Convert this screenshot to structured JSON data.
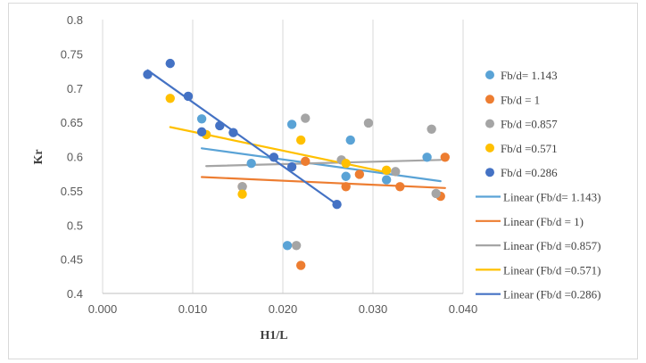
{
  "chart_data": {
    "type": "scatter",
    "xlabel": "H1/L",
    "ylabel": "Kr",
    "xlim": [
      0.0,
      0.04
    ],
    "ylim": [
      0.4,
      0.8
    ],
    "xticks": [
      0.0,
      0.01,
      0.02,
      0.03,
      0.04
    ],
    "xtick_labels": [
      "0.000",
      "0.010",
      "0.020",
      "0.030",
      "0.040"
    ],
    "yticks": [
      0.4,
      0.45,
      0.5,
      0.55,
      0.6,
      0.65,
      0.7,
      0.75,
      0.8
    ],
    "ytick_labels": [
      "0.4",
      "0.45",
      "0.5",
      "0.55",
      "0.6",
      "0.65",
      "0.7",
      "0.75",
      "0.8"
    ],
    "grid": "vertical",
    "legend_position": "right",
    "series": [
      {
        "name": "Fb/d= 1.143",
        "color": "#5aa3d6",
        "points": [
          [
            0.011,
            0.655
          ],
          [
            0.0165,
            0.59
          ],
          [
            0.0205,
            0.47
          ],
          [
            0.021,
            0.647
          ],
          [
            0.027,
            0.571
          ],
          [
            0.0275,
            0.624
          ],
          [
            0.0315,
            0.566
          ],
          [
            0.036,
            0.599
          ]
        ]
      },
      {
        "name": "Fb/d = 1",
        "color": "#ed7d31",
        "points": [
          [
            0.0155,
            0.556
          ],
          [
            0.022,
            0.441
          ],
          [
            0.0225,
            0.593
          ],
          [
            0.027,
            0.556
          ],
          [
            0.0285,
            0.574
          ],
          [
            0.033,
            0.556
          ],
          [
            0.0375,
            0.542
          ],
          [
            0.038,
            0.599
          ]
        ]
      },
      {
        "name": "Fb/d =0.857",
        "color": "#a5a5a5",
        "points": [
          [
            0.0155,
            0.556
          ],
          [
            0.0215,
            0.47
          ],
          [
            0.0225,
            0.656
          ],
          [
            0.0265,
            0.595
          ],
          [
            0.0295,
            0.649
          ],
          [
            0.0325,
            0.578
          ],
          [
            0.0365,
            0.64
          ],
          [
            0.037,
            0.546
          ]
        ]
      },
      {
        "name": "Fb/d =0.571",
        "color": "#ffc000",
        "points": [
          [
            0.0075,
            0.685
          ],
          [
            0.0115,
            0.632
          ],
          [
            0.0155,
            0.545
          ],
          [
            0.022,
            0.624
          ],
          [
            0.027,
            0.59
          ],
          [
            0.0315,
            0.58
          ]
        ]
      },
      {
        "name": "Fb/d =0.286",
        "color": "#4472c4",
        "points": [
          [
            0.005,
            0.72
          ],
          [
            0.0075,
            0.736
          ],
          [
            0.0095,
            0.688
          ],
          [
            0.011,
            0.636
          ],
          [
            0.013,
            0.645
          ],
          [
            0.0145,
            0.635
          ],
          [
            0.019,
            0.599
          ],
          [
            0.021,
            0.585
          ],
          [
            0.026,
            0.53
          ]
        ]
      }
    ],
    "trendlines": [
      {
        "name": "Linear (Fb/d= 1.143)",
        "color": "#5aa3d6",
        "x": [
          0.011,
          0.0375
        ],
        "y": [
          0.612,
          0.564
        ]
      },
      {
        "name": "Linear (Fb/d = 1)",
        "color": "#ed7d31",
        "x": [
          0.011,
          0.038
        ],
        "y": [
          0.57,
          0.554
        ]
      },
      {
        "name": "Linear (Fb/d =0.857)",
        "color": "#a5a5a5",
        "x": [
          0.0115,
          0.0375
        ],
        "y": [
          0.586,
          0.595
        ]
      },
      {
        "name": "Linear (Fb/d =0.571)",
        "color": "#ffc000",
        "x": [
          0.0075,
          0.0315
        ],
        "y": [
          0.643,
          0.577
        ]
      },
      {
        "name": "Linear (Fb/d =0.286)",
        "color": "#4472c4",
        "x": [
          0.005,
          0.026
        ],
        "y": [
          0.726,
          0.53
        ]
      }
    ]
  }
}
